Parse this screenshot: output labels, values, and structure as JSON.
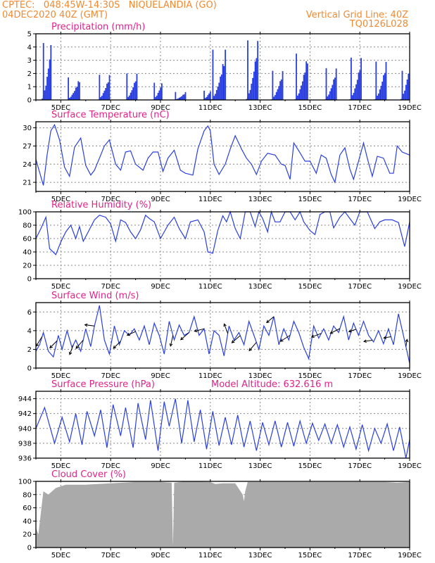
{
  "header": {
    "left1": "CPTEC:   048:45W-14:30S   NIQUELANDIA (GO)",
    "left2": "04DEC2020 40Z (GMT)",
    "right1": "Vertical Grid Line: 40Z",
    "right2": "TQ0126L028"
  },
  "colors": {
    "header": "#f08a32",
    "title": "#e0238a",
    "line": "#2a3fe0",
    "bar": "#2a3fe0",
    "cloud": "#aaaaaa",
    "grid": "#888888"
  },
  "x_ticks": [
    "5DEC",
    "7DEC",
    "9DEC",
    "11DEC",
    "13DEC",
    "15DEC",
    "17DEC",
    "19DEC"
  ],
  "x_range_days": [
    4.0,
    19.0
  ],
  "chart_data": [
    {
      "type": "bar",
      "title": "Precipitation (mm/h)",
      "ylim": [
        0,
        5
      ],
      "yticks": [
        0,
        1,
        2,
        3,
        4,
        5
      ],
      "x_unit": "day of December 2020",
      "bursts": [
        {
          "start": 4.2,
          "end": 4.6,
          "peak": 4.3
        },
        {
          "start": 5.2,
          "end": 5.75,
          "peak": 1.7
        },
        {
          "start": 6.45,
          "end": 6.95,
          "peak": 1.9
        },
        {
          "start": 7.55,
          "end": 8.05,
          "peak": 2.0
        },
        {
          "start": 8.65,
          "end": 9.05,
          "peak": 1.3
        },
        {
          "start": 9.5,
          "end": 10.0,
          "peak": 0.6
        },
        {
          "start": 10.65,
          "end": 11.0,
          "peak": 0.7
        },
        {
          "start": 11.0,
          "end": 11.6,
          "peak": 3.8
        },
        {
          "start": 12.4,
          "end": 12.9,
          "peak": 4.5
        },
        {
          "start": 13.4,
          "end": 13.9,
          "peak": 2.2
        },
        {
          "start": 14.35,
          "end": 14.9,
          "peak": 3.5
        },
        {
          "start": 15.55,
          "end": 16.05,
          "peak": 2.4
        },
        {
          "start": 16.55,
          "end": 17.05,
          "peak": 3.2
        },
        {
          "start": 17.55,
          "end": 18.05,
          "peak": 2.9
        },
        {
          "start": 18.6,
          "end": 18.95,
          "peak": 2.2
        }
      ]
    },
    {
      "type": "line",
      "title": "Surface Temperature (nC)",
      "ylim": [
        19.5,
        31
      ],
      "yticks": [
        21,
        24,
        27,
        30
      ],
      "x": [
        4.0,
        4.3,
        4.45,
        4.6,
        4.75,
        4.95,
        5.15,
        5.35,
        5.55,
        5.8,
        6.0,
        6.2,
        6.35,
        6.55,
        6.75,
        6.95,
        7.2,
        7.4,
        7.6,
        7.8,
        8.0,
        8.3,
        8.5,
        8.7,
        8.9,
        9.1,
        9.3,
        9.55,
        9.8,
        10.0,
        10.3,
        10.5,
        10.75,
        10.9,
        11.0,
        11.15,
        11.35,
        11.6,
        11.8,
        12.0,
        12.25,
        12.45,
        12.65,
        12.85,
        13.05,
        13.3,
        13.6,
        13.85,
        14.0,
        14.2,
        14.35,
        14.55,
        14.8,
        15.0,
        15.25,
        15.45,
        15.65,
        15.85,
        16.0,
        16.2,
        16.4,
        16.6,
        16.75,
        16.95,
        17.15,
        17.3,
        17.5,
        17.7,
        17.95,
        18.2,
        18.35,
        18.5,
        18.7,
        19.0
      ],
      "y": [
        24.8,
        20.5,
        25.5,
        29.5,
        30.5,
        28.0,
        23.5,
        22.0,
        26.8,
        28.3,
        23.8,
        22.2,
        23.0,
        25.0,
        27.0,
        28.0,
        24.0,
        23.0,
        26.0,
        26.2,
        24.0,
        23.0,
        25.0,
        26.0,
        26.0,
        22.8,
        25.0,
        26.3,
        23.0,
        22.5,
        22.2,
        26.5,
        29.5,
        30.3,
        29.5,
        24.0,
        22.3,
        24.0,
        26.5,
        28.7,
        26.5,
        25.0,
        24.0,
        22.3,
        24.5,
        25.8,
        25.5,
        24.0,
        23.8,
        21.5,
        27.5,
        26.2,
        24.5,
        24.5,
        22.5,
        25.5,
        25.0,
        22.3,
        21.0,
        25.5,
        26.7,
        23.2,
        21.5,
        24.5,
        27.5,
        25.0,
        22.0,
        25.3,
        25.0,
        22.5,
        22.5,
        27.0,
        26.0,
        25.5
      ]
    },
    {
      "type": "line",
      "title": "Relative Humidity (%)",
      "ylim": [
        0,
        100
      ],
      "yticks": [
        0,
        20,
        40,
        60,
        80,
        100
      ],
      "x": [
        4.0,
        4.2,
        4.4,
        4.55,
        4.8,
        5.0,
        5.2,
        5.4,
        5.6,
        5.75,
        5.9,
        6.1,
        6.35,
        6.55,
        6.8,
        7.0,
        7.2,
        7.4,
        7.6,
        7.8,
        8.0,
        8.2,
        8.4,
        8.55,
        8.75,
        9.0,
        9.3,
        9.55,
        9.75,
        10.0,
        10.2,
        10.5,
        10.75,
        10.9,
        11.1,
        11.3,
        11.5,
        11.65,
        11.8,
        12.0,
        12.2,
        12.4,
        12.6,
        12.8,
        12.95,
        13.1,
        13.3,
        13.45,
        13.6,
        13.8,
        14.0,
        14.2,
        14.4,
        14.6,
        14.75,
        15.0,
        15.2,
        15.4,
        15.6,
        15.8,
        15.95,
        16.2,
        16.4,
        16.6,
        16.8,
        17.0,
        17.3,
        17.6,
        17.8,
        18.0,
        18.3,
        18.55,
        18.8,
        19.0
      ],
      "y": [
        60,
        75,
        92,
        45,
        36,
        55,
        70,
        80,
        60,
        78,
        56,
        70,
        88,
        95,
        92,
        82,
        56,
        88,
        84,
        70,
        60,
        73,
        95,
        90,
        85,
        60,
        80,
        92,
        75,
        60,
        85,
        88,
        70,
        40,
        38,
        72,
        94,
        85,
        100,
        75,
        60,
        100,
        100,
        78,
        100,
        90,
        70,
        100,
        85,
        85,
        100,
        100,
        88,
        100,
        85,
        72,
        66,
        96,
        100,
        100,
        76,
        92,
        100,
        90,
        80,
        100,
        100,
        75,
        85,
        88,
        88,
        84,
        48,
        85
      ]
    },
    {
      "type": "line",
      "title": "Surface Wind (m/s)",
      "ylim": [
        0,
        7
      ],
      "yticks": [
        0,
        2,
        4,
        6
      ],
      "x": [
        4.0,
        4.15,
        4.3,
        4.5,
        4.7,
        4.9,
        5.05,
        5.25,
        5.45,
        5.6,
        5.8,
        6.0,
        6.2,
        6.35,
        6.55,
        6.75,
        6.95,
        7.15,
        7.35,
        7.55,
        7.75,
        7.95,
        8.15,
        8.35,
        8.55,
        8.75,
        8.95,
        9.15,
        9.35,
        9.55,
        9.75,
        9.95,
        10.15,
        10.35,
        10.55,
        10.75,
        10.95,
        11.15,
        11.35,
        11.55,
        11.75,
        11.95,
        12.15,
        12.35,
        12.55,
        12.75,
        12.95,
        13.15,
        13.35,
        13.55,
        13.75,
        13.95,
        14.15,
        14.35,
        14.55,
        14.75,
        14.95,
        15.15,
        15.35,
        15.55,
        15.75,
        15.95,
        16.15,
        16.35,
        16.55,
        16.75,
        16.95,
        17.15,
        17.35,
        17.55,
        17.75,
        17.95,
        18.15,
        18.35,
        18.55,
        18.75,
        19.0
      ],
      "y": [
        1.8,
        2.5,
        3.8,
        1.8,
        1.2,
        3.5,
        2.0,
        4.0,
        2.2,
        3.0,
        1.8,
        4.2,
        2.3,
        4.5,
        6.7,
        3.0,
        1.5,
        4.5,
        2.5,
        4.0,
        3.5,
        4.2,
        3.0,
        4.5,
        2.5,
        4.8,
        3.5,
        1.5,
        5.0,
        3.0,
        4.6,
        3.5,
        3.8,
        5.5,
        3.5,
        4.2,
        1.5,
        4.0,
        3.5,
        1.3,
        4.5,
        3.0,
        3.8,
        2.5,
        5.0,
        3.5,
        2.0,
        4.5,
        3.5,
        5.5,
        2.5,
        4.2,
        3.0,
        5.0,
        3.8,
        2.2,
        1.0,
        4.5,
        3.2,
        4.2,
        3.0,
        4.5,
        3.8,
        5.5,
        3.0,
        4.8,
        3.5,
        5.0,
        3.5,
        2.8,
        4.0,
        2.6,
        4.2,
        2.5,
        5.8,
        3.5,
        0.5
      ],
      "arrows": [
        {
          "day": 4.25,
          "u": -0.5,
          "v": -0.8
        },
        {
          "day": 4.85,
          "u": -0.6,
          "v": -0.6
        },
        {
          "day": 5.5,
          "u": -0.3,
          "v": -0.8
        },
        {
          "day": 5.9,
          "u": -0.6,
          "v": -0.7
        },
        {
          "day": 6.35,
          "u": -0.8,
          "v": 0.1
        },
        {
          "day": 7.4,
          "u": -0.6,
          "v": -0.6
        },
        {
          "day": 8.0,
          "u": -0.7,
          "v": -0.3
        },
        {
          "day": 9.5,
          "u": -0.2,
          "v": -0.9
        },
        {
          "day": 10.15,
          "u": -0.7,
          "v": -0.6
        },
        {
          "day": 10.75,
          "u": -0.8,
          "v": -0.2
        },
        {
          "day": 11.7,
          "u": -0.3,
          "v": 0.8
        },
        {
          "day": 12.2,
          "u": -0.7,
          "v": -0.6
        },
        {
          "day": 12.85,
          "u": -0.6,
          "v": -0.7
        },
        {
          "day": 13.55,
          "u": -0.6,
          "v": -0.5
        },
        {
          "day": 14.2,
          "u": -0.8,
          "v": -0.5
        },
        {
          "day": 15.45,
          "u": -0.8,
          "v": -0.3
        },
        {
          "day": 16.2,
          "u": -0.8,
          "v": -0.4
        },
        {
          "day": 16.85,
          "u": -0.6,
          "v": -0.2
        },
        {
          "day": 17.5,
          "u": -0.7,
          "v": -0.1
        },
        {
          "day": 18.25,
          "u": -0.6,
          "v": -0.1
        },
        {
          "day": 18.85,
          "u": 0.1,
          "v": 0.6
        }
      ]
    },
    {
      "type": "line",
      "title": "Surface Pressure (hPa)",
      "annotation": "Model Altitude: 632.616 m",
      "ylim": [
        936,
        945
      ],
      "yticks": [
        936,
        938,
        940,
        942,
        944
      ],
      "x": [
        4.0,
        4.35,
        4.75,
        5.05,
        5.35,
        5.6,
        5.85,
        6.05,
        6.35,
        6.6,
        6.85,
        7.1,
        7.4,
        7.6,
        7.9,
        8.1,
        8.4,
        8.6,
        8.9,
        9.15,
        9.35,
        9.6,
        9.85,
        10.1,
        10.35,
        10.6,
        10.85,
        11.1,
        11.35,
        11.6,
        11.85,
        12.1,
        12.35,
        12.6,
        12.85,
        13.1,
        13.35,
        13.6,
        13.85,
        14.1,
        14.35,
        14.6,
        14.85,
        15.1,
        15.35,
        15.6,
        15.85,
        16.1,
        16.35,
        16.6,
        16.85,
        17.1,
        17.35,
        17.6,
        17.85,
        18.1,
        18.35,
        18.6,
        18.85,
        19.0
      ],
      "y": [
        940.0,
        942.8,
        938.0,
        941.5,
        938.2,
        942.0,
        937.8,
        942.3,
        939.0,
        942.5,
        937.4,
        943.2,
        939.0,
        942.8,
        937.4,
        943.4,
        938.5,
        943.8,
        937.0,
        943.6,
        940.3,
        944.0,
        938.0,
        943.8,
        938.2,
        942.5,
        937.2,
        942.3,
        937.7,
        941.5,
        937.8,
        941.8,
        937.5,
        941.0,
        937.0,
        940.8,
        937.8,
        941.0,
        937.5,
        940.8,
        937.6,
        941.0,
        938.0,
        940.7,
        938.4,
        940.6,
        938.0,
        940.5,
        937.5,
        940.2,
        937.2,
        940.5,
        937.0,
        940.0,
        938.0,
        940.6,
        937.0,
        940.2,
        936.0,
        938.5
      ]
    },
    {
      "type": "area",
      "title": "Cloud Cover (%)",
      "ylim": [
        0,
        100
      ],
      "yticks": [
        0,
        20,
        40,
        60,
        80,
        100
      ],
      "x": [
        4.0,
        4.1,
        4.3,
        4.5,
        4.8,
        5.2,
        6.0,
        7.0,
        8.0,
        9.0,
        9.45,
        9.5,
        9.55,
        10.0,
        11.0,
        11.2,
        11.5,
        12.0,
        12.3,
        12.35,
        12.4,
        12.5,
        13.0,
        14.0,
        15.0,
        16.0,
        17.0,
        18.0,
        18.5,
        19.0
      ],
      "y": [
        30,
        20,
        85,
        80,
        90,
        95,
        95,
        97,
        99,
        99,
        98,
        2,
        98,
        100,
        99,
        96,
        97,
        97,
        80,
        70,
        85,
        99,
        99,
        99,
        99,
        99,
        99,
        99,
        98,
        99
      ]
    }
  ]
}
